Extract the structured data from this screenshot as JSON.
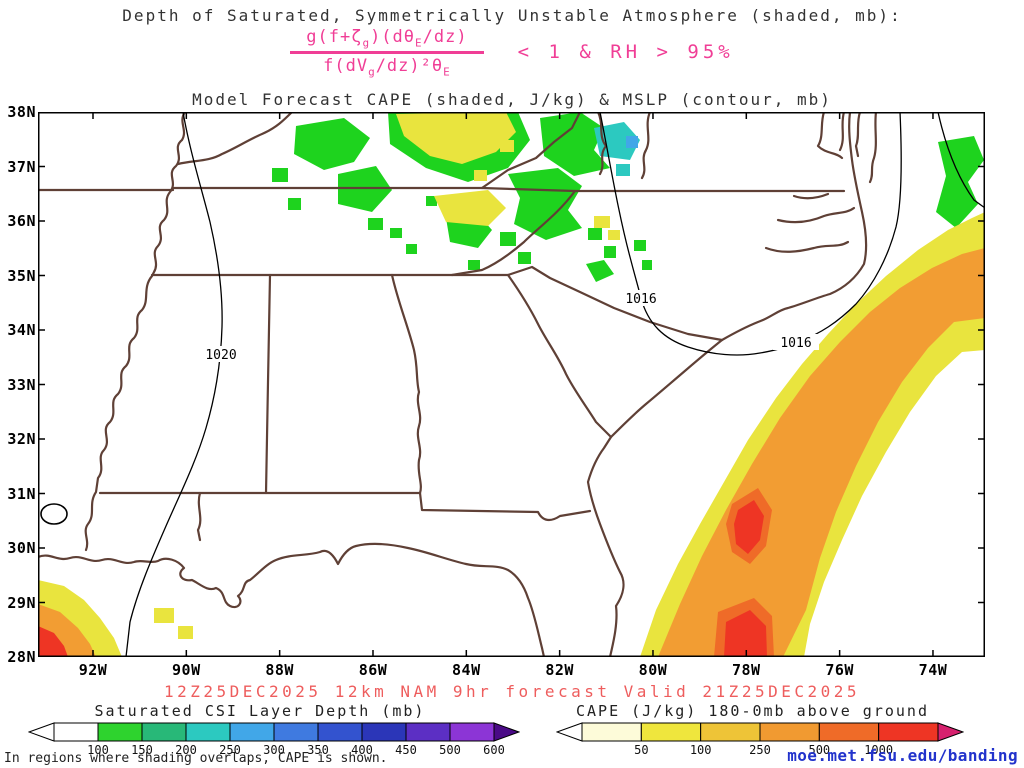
{
  "title": {
    "line1": "Depth of Saturated, Symmetrically Unstable Atmosphere (shaded, mb):",
    "line3": "Model Forecast CAPE (shaded, J/kg) & MSLP (contour, mb)"
  },
  "formula": {
    "numerator": {
      "p1": "g(f+ζ",
      "p2": "g",
      "p3": ")(dθ",
      "p4": "E",
      "p5": "/dz)"
    },
    "denominator": {
      "p1": "f(dV",
      "p2": "g",
      "p3": "/dz)²θ",
      "p4": "E"
    },
    "condition": "< 1 & RH > 95%",
    "color": "#f03e96"
  },
  "map": {
    "contour_labels": {
      "c1020": "1020",
      "c1016a": "1016",
      "c1016b": "1016"
    },
    "lat_labels": [
      "38N",
      "37N",
      "36N",
      "35N",
      "34N",
      "33N",
      "32N",
      "31N",
      "30N",
      "29N",
      "28N"
    ],
    "lon_labels": [
      "92W",
      "90W",
      "88W",
      "86W",
      "84W",
      "82W",
      "80W",
      "78W",
      "76W",
      "74W"
    ]
  },
  "footer": {
    "forecast_line": "12Z25DEC2025 12km NAM 9hr forecast Valid 21Z25DEC2025",
    "note": "In regions where shading overlaps, CAPE is shown.",
    "url": "moe.met.fsu.edu/banding"
  },
  "colorbars": {
    "csi": {
      "title": "Saturated CSI Layer Depth (mb)",
      "labels": [
        "100",
        "150",
        "200",
        "250",
        "300",
        "350",
        "400",
        "450",
        "500",
        "600"
      ],
      "segments": [
        "#ffffff",
        "#2ed32e",
        "#28b878",
        "#2cc9c0",
        "#41a7e8",
        "#3f7ae0",
        "#3353cf",
        "#2b36b8",
        "#5c2fc4",
        "#8c35d6"
      ],
      "arrow_left": "#ffffff",
      "arrow_right": "#4a0a86"
    },
    "cape": {
      "title": "CAPE (J/kg) 180-0mb above ground",
      "labels": [
        "50",
        "100",
        "250",
        "500",
        "1000"
      ],
      "segments": [
        "#fdfbd9",
        "#efe63d",
        "#eec437",
        "#f19a31",
        "#ef6b28",
        "#ee3524"
      ],
      "arrow_left": "#ffffff",
      "arrow_right": "#d6216e"
    }
  },
  "palette": {
    "csi_shading": {
      "green": "#1ed31e",
      "teal": "#2cc9c0",
      "cyan": "#41a7e8",
      "yellow": "#e9e43e"
    },
    "cape_shading": {
      "yellow": "#e9e43e",
      "orange": "#f29d33",
      "dark_orange": "#ef6b28",
      "red": "#ee3524"
    },
    "state_border": "#5f4036",
    "contour": "#000000",
    "forecast_text": "#ee5d5d",
    "url_text": "#2233cc"
  }
}
